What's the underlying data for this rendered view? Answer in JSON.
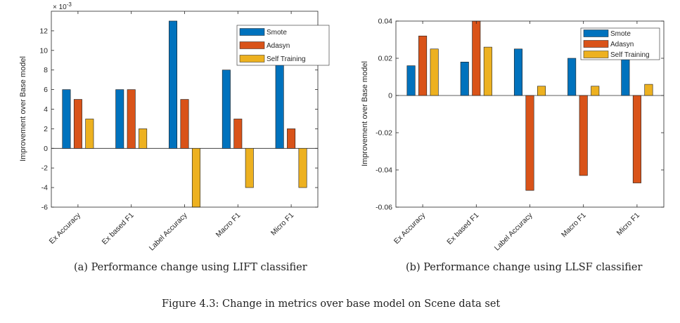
{
  "figure_caption": "Figure 4.3: Change in metrics over base model on Scene data set",
  "colors": {
    "Smote": "#0072BD",
    "Adasyn": "#D95319",
    "Self Training": "#EDB120"
  },
  "chart_data": [
    {
      "type": "bar",
      "caption": "(a) Performance change using LIFT classifier",
      "categories": [
        "Ex Accuracy",
        "Ex based F1",
        "Label Accuracy",
        "Macro F1",
        "Micro F1"
      ],
      "series": [
        {
          "name": "Smote",
          "values": [
            0.006,
            0.006,
            0.013,
            0.008,
            0.009
          ]
        },
        {
          "name": "Adasyn",
          "values": [
            0.005,
            0.006,
            0.005,
            0.003,
            0.002
          ]
        },
        {
          "name": "Self Training",
          "values": [
            0.003,
            0.002,
            -0.007,
            -0.004,
            -0.004
          ]
        }
      ],
      "ylabel": "Improvement over Base model",
      "xlabel": "",
      "ylim": [
        -0.006,
        0.014
      ],
      "yticks": [
        -0.006,
        -0.004,
        -0.002,
        0,
        0.002,
        0.004,
        0.006,
        0.008,
        0.01,
        0.012
      ],
      "ytick_labels": [
        "-6",
        "-4",
        "-2",
        "0",
        "2",
        "4",
        "6",
        "8",
        "10",
        "12"
      ],
      "exponent_label": "× 10",
      "exponent_power": "-3",
      "legend_position": "top-right",
      "grid": false
    },
    {
      "type": "bar",
      "caption": "(b) Performance change using LLSF classifier",
      "categories": [
        "Ex Accuracy",
        "Ex based F1",
        "Label Accuracy",
        "Macro F1",
        "Micro F1"
      ],
      "series": [
        {
          "name": "Smote",
          "values": [
            0.016,
            0.018,
            0.025,
            0.02,
            0.02
          ]
        },
        {
          "name": "Adasyn",
          "values": [
            0.032,
            0.041,
            -0.051,
            -0.043,
            -0.047
          ]
        },
        {
          "name": "Self Training",
          "values": [
            0.025,
            0.026,
            0.005,
            0.005,
            0.006
          ]
        }
      ],
      "ylabel": "Improvement over Base model",
      "xlabel": "",
      "ylim": [
        -0.06,
        0.04
      ],
      "yticks": [
        -0.06,
        -0.04,
        -0.02,
        0,
        0.02,
        0.04
      ],
      "ytick_labels": [
        "-0.06",
        "-0.04",
        "-0.02",
        "0",
        "0.02",
        "0.04"
      ],
      "legend_position": "top-right",
      "grid": false
    }
  ]
}
